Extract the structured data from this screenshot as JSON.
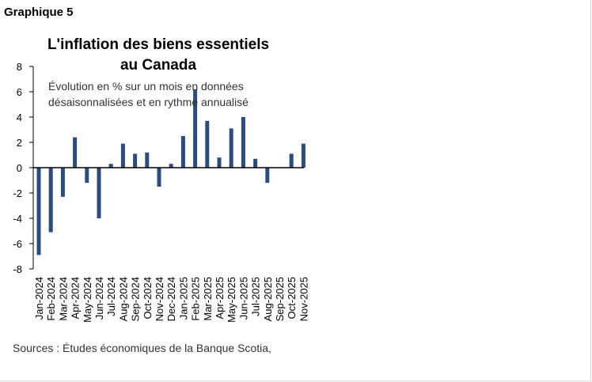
{
  "figure_label": "Graphique 5",
  "source": "Sources : Études économiques de la Banque Scotia,",
  "chart_data": {
    "type": "bar",
    "title": "L'inflation des biens essentiels au Canada",
    "title_lines": [
      "L'inflation des biens essentiels",
      "au Canada"
    ],
    "subtitle_lines": [
      "Évolution en % sur un mois en données",
      "désaisonnalisées et en rythme annualisé"
    ],
    "xlabel": "",
    "ylabel": "",
    "ylim": [
      -8,
      8
    ],
    "yticks": [
      8,
      6,
      4,
      2,
      0,
      -2,
      -4,
      -6,
      -8
    ],
    "grid": false,
    "legend": "none",
    "bar_color": "#2b4c7e",
    "categories": [
      "Jan-2024",
      "Feb-2024",
      "Mar-2024",
      "Apr-2024",
      "May-2024",
      "Jun-2024",
      "Jul-2024",
      "Aug-2024",
      "Sep-2024",
      "Oct-2024",
      "Nov-2024",
      "Dec-2024",
      "Jan-2025",
      "Feb-2025",
      "Mar-2025",
      "Apr-2025",
      "May-2025",
      "Jun-2025",
      "Jul-2025",
      "Aug-2025",
      "Sep-2025",
      "Oct-2025",
      "Nov-2025"
    ],
    "values": [
      -6.9,
      -5.1,
      -2.3,
      2.4,
      -1.2,
      -4.0,
      0.3,
      1.9,
      1.1,
      1.2,
      -1.5,
      0.3,
      2.5,
      6.2,
      3.7,
      0.8,
      3.1,
      4.0,
      0.7,
      -1.2,
      0.0,
      1.1,
      1.9
    ]
  }
}
